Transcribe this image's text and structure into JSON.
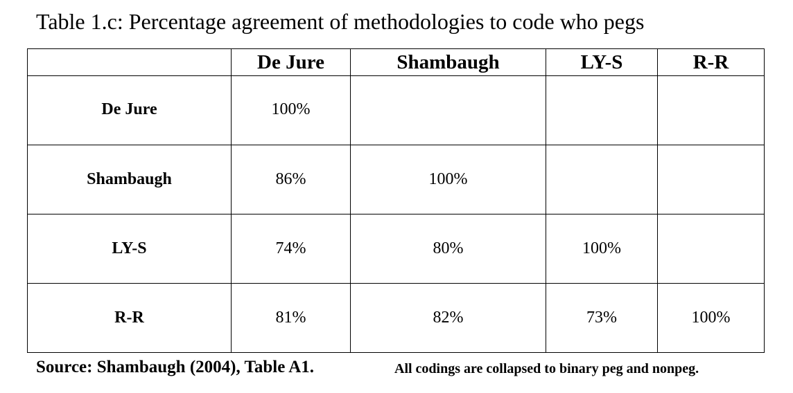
{
  "caption": "Table 1.c: Percentage agreement of methodologies to code who pegs",
  "table": {
    "corner": "",
    "columns": [
      "De Jure",
      "Shambaugh",
      "LY-S",
      "R-R"
    ],
    "rows": [
      {
        "label": "De Jure",
        "cells": [
          "100%",
          "",
          "",
          ""
        ]
      },
      {
        "label": "Shambaugh",
        "cells": [
          "86%",
          "100%",
          "",
          ""
        ]
      },
      {
        "label": "LY-S",
        "cells": [
          "74%",
          "80%",
          "100%",
          ""
        ]
      },
      {
        "label": "R-R",
        "cells": [
          "81%",
          "82%",
          "73%",
          "100%"
        ]
      }
    ]
  },
  "footer": {
    "source": "Source: Shambaugh (2004), Table A1.",
    "note": "All codings are collapsed to binary peg and nonpeg."
  }
}
